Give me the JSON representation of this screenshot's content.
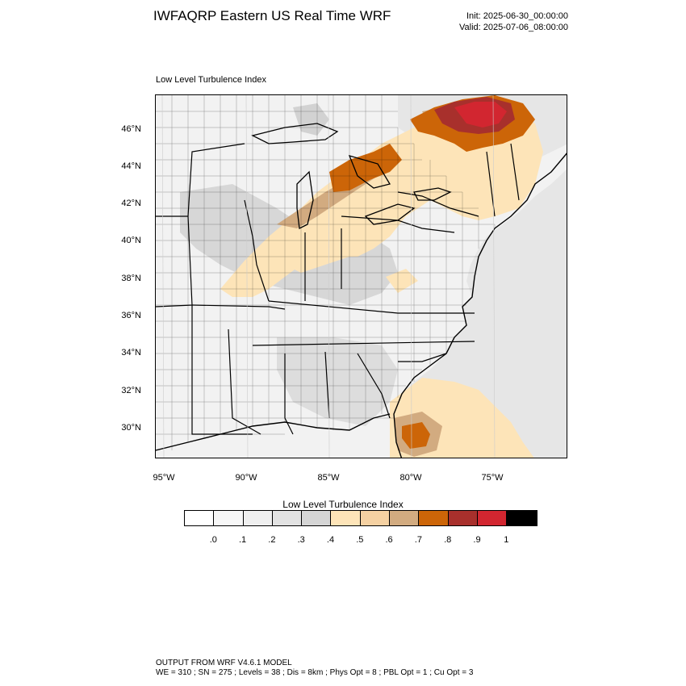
{
  "header": {
    "title": "IWFAQRP Eastern US Real Time WRF",
    "init": "Init: 2025-06-30_00:00:00",
    "valid": "Valid: 2025-07-06_08:00:00"
  },
  "plot": {
    "subtitle": "Low Level Turbulence Index",
    "latitude_labels": [
      "46°N",
      "44°N",
      "42°N",
      "40°N",
      "38°N",
      "36°N",
      "34°N",
      "32°N",
      "30°N"
    ],
    "longitude_labels": [
      "95°W",
      "90°W",
      "85°W",
      "80°W",
      "75°W"
    ]
  },
  "colorbar": {
    "title": "Low Level Turbulence Index",
    "labels": [
      ".0",
      ".1",
      ".2",
      ".3",
      ".4",
      ".5",
      ".6",
      ".7",
      ".8",
      ".9",
      "1"
    ],
    "colors": [
      "#ffffff",
      "#f7f7f7",
      "#efefef",
      "#e2e2e2",
      "#d5d5d5",
      "#fde4b8",
      "#f5d1a2",
      "#d2ab80",
      "#cc6508",
      "#a8302c",
      "#d22630",
      "#000000"
    ]
  },
  "map_fill_colors": {
    "ocean_light": "#e6e6e6",
    "land_light": "#f2f2f2",
    "low": "#d7d7d7",
    "peach": "#fde4b8",
    "tan": "#d2ab80",
    "orange": "#cc6508",
    "brown": "#a8302c",
    "red": "#d22630"
  },
  "footer": {
    "line1": "OUTPUT FROM WRF V4.6.1 MODEL",
    "line2": "WE = 310 ; SN = 275 ; Levels = 38 ; Dis = 8km ; Phys Opt = 8 ; PBL Opt = 1 ; Cu Opt = 3"
  }
}
